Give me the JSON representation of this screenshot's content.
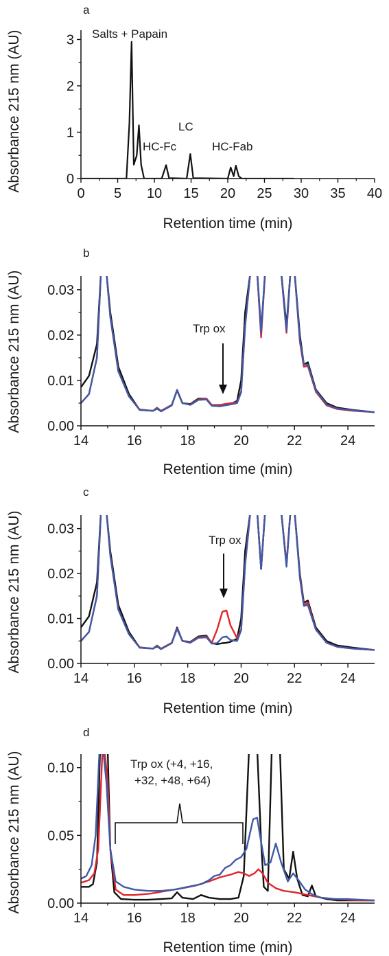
{
  "colors": {
    "black": "#111111",
    "red": "#e0262b",
    "blue": "#3e5aa8"
  },
  "chart_data": [
    {
      "panel": "a",
      "type": "line",
      "ylabel": "Absorbance 215 nm (AU)",
      "xlabel": "Retention time (min)",
      "xlim": [
        0,
        40
      ],
      "ylim": [
        0,
        3.2
      ],
      "xticks": [
        "0",
        "5",
        "10",
        "15",
        "20",
        "25",
        "30",
        "35",
        "40"
      ],
      "yticks": [
        "0",
        "1",
        "2",
        "3"
      ],
      "annotations": [
        "Salts + Papain",
        "HC-Fc",
        "LC",
        "HC-Fab"
      ],
      "series": [
        {
          "color": "black",
          "x": [
            0,
            6.2,
            6.6,
            6.9,
            7.2,
            7.6,
            7.9,
            8.2,
            8.6,
            11.0,
            11.6,
            12.0,
            14.4,
            14.9,
            15.3,
            20.0,
            20.4,
            20.8,
            21.1,
            21.5,
            21.9,
            29.0
          ],
          "y": [
            0,
            0.0,
            1.2,
            2.95,
            0.3,
            0.5,
            1.15,
            0.3,
            0.0,
            0.0,
            0.29,
            0.01,
            0.0,
            0.53,
            0.01,
            0.0,
            0.24,
            0.05,
            0.28,
            0.05,
            0.0,
            0.0
          ]
        }
      ]
    },
    {
      "panel": "b",
      "type": "line",
      "ylabel": "Absorbance 215 nm (AU)",
      "xlabel": "Retention time (min)",
      "xlim": [
        14,
        25
      ],
      "ylim": [
        0,
        0.033
      ],
      "xticks": [
        "14",
        "16",
        "18",
        "20",
        "22",
        "24"
      ],
      "yticks": [
        "0.00",
        "0.01",
        "0.02",
        "0.03"
      ],
      "annotations": [
        "Trp ox"
      ],
      "series": [
        {
          "color": "black",
          "x": [
            14.0,
            14.3,
            14.6,
            14.75,
            14.95,
            15.1,
            15.4,
            15.8,
            16.2,
            16.7,
            16.85,
            17.0,
            17.4,
            17.6,
            17.8,
            18.1,
            18.4,
            18.7,
            18.9,
            19.2,
            19.6,
            19.85,
            20.0,
            20.15,
            20.35,
            20.6,
            20.75,
            20.9,
            21.05,
            21.2,
            21.5,
            21.7,
            21.85,
            22.0,
            22.2,
            22.35,
            22.5,
            22.8,
            23.2,
            23.6,
            24.2,
            25.0
          ],
          "y": [
            0.0085,
            0.011,
            0.018,
            0.034,
            0.034,
            0.025,
            0.013,
            0.007,
            0.0035,
            0.0033,
            0.0038,
            0.0032,
            0.0045,
            0.0079,
            0.005,
            0.0048,
            0.006,
            0.006,
            0.0045,
            0.0043,
            0.0048,
            0.0055,
            0.01,
            0.025,
            0.034,
            0.034,
            0.021,
            0.034,
            0.034,
            0.034,
            0.034,
            0.022,
            0.034,
            0.034,
            0.02,
            0.0135,
            0.014,
            0.008,
            0.005,
            0.004,
            0.0035,
            0.003
          ]
        },
        {
          "color": "red",
          "x": [
            14.0,
            14.3,
            14.6,
            14.75,
            14.95,
            15.1,
            15.4,
            15.8,
            16.2,
            16.7,
            16.85,
            17.0,
            17.4,
            17.6,
            17.8,
            18.1,
            18.4,
            18.7,
            18.9,
            19.2,
            19.6,
            19.85,
            20.0,
            20.15,
            20.35,
            20.6,
            20.75,
            20.9,
            21.05,
            21.2,
            21.5,
            21.7,
            21.85,
            22.0,
            22.2,
            22.35,
            22.5,
            22.8,
            23.2,
            23.6,
            24.2,
            25.0
          ],
          "y": [
            0.005,
            0.007,
            0.015,
            0.034,
            0.034,
            0.024,
            0.012,
            0.0065,
            0.0036,
            0.0033,
            0.004,
            0.0033,
            0.0046,
            0.0078,
            0.005,
            0.0047,
            0.0058,
            0.006,
            0.0046,
            0.0046,
            0.005,
            0.0052,
            0.0075,
            0.022,
            0.034,
            0.034,
            0.0195,
            0.034,
            0.034,
            0.034,
            0.034,
            0.0205,
            0.034,
            0.034,
            0.0185,
            0.013,
            0.0132,
            0.0075,
            0.0045,
            0.0037,
            0.0033,
            0.003
          ]
        },
        {
          "color": "blue",
          "x": [
            14.0,
            14.3,
            14.6,
            14.75,
            14.95,
            15.1,
            15.4,
            15.8,
            16.2,
            16.7,
            16.85,
            17.0,
            17.4,
            17.6,
            17.8,
            18.1,
            18.4,
            18.7,
            18.9,
            19.2,
            19.6,
            19.85,
            20.0,
            20.15,
            20.35,
            20.6,
            20.75,
            20.9,
            21.05,
            21.2,
            21.5,
            21.7,
            21.85,
            22.0,
            22.2,
            22.35,
            22.5,
            22.8,
            23.2,
            23.6,
            24.2,
            25.0
          ],
          "y": [
            0.005,
            0.007,
            0.015,
            0.034,
            0.034,
            0.024,
            0.012,
            0.0065,
            0.0035,
            0.0033,
            0.0039,
            0.0032,
            0.0045,
            0.0078,
            0.005,
            0.0046,
            0.0057,
            0.0058,
            0.0044,
            0.0043,
            0.0047,
            0.005,
            0.0074,
            0.022,
            0.034,
            0.034,
            0.0205,
            0.034,
            0.034,
            0.034,
            0.034,
            0.021,
            0.034,
            0.034,
            0.019,
            0.0135,
            0.0135,
            0.0078,
            0.0047,
            0.0038,
            0.0034,
            0.003
          ]
        }
      ]
    },
    {
      "panel": "c",
      "type": "line",
      "ylabel": "Absorbance 215 nm (AU)",
      "xlabel": "Retention time (min)",
      "xlim": [
        14,
        25
      ],
      "ylim": [
        0,
        0.033
      ],
      "xticks": [
        "14",
        "16",
        "18",
        "20",
        "22",
        "24"
      ],
      "yticks": [
        "0.00",
        "0.01",
        "0.02",
        "0.03"
      ],
      "annotations": [
        "Trp ox"
      ],
      "series": [
        {
          "color": "black",
          "x": [
            14.0,
            14.3,
            14.6,
            14.75,
            14.95,
            15.1,
            15.4,
            15.8,
            16.2,
            16.7,
            16.85,
            17.0,
            17.4,
            17.6,
            17.8,
            18.1,
            18.4,
            18.7,
            18.9,
            19.1,
            19.3,
            19.45,
            19.6,
            19.85,
            20.0,
            20.15,
            20.35,
            20.6,
            20.75,
            20.9,
            21.05,
            21.2,
            21.5,
            21.7,
            21.85,
            22.0,
            22.2,
            22.35,
            22.5,
            22.8,
            23.2,
            23.6,
            24.2,
            25.0
          ],
          "y": [
            0.008,
            0.0105,
            0.018,
            0.034,
            0.034,
            0.025,
            0.013,
            0.007,
            0.0035,
            0.0033,
            0.0038,
            0.0032,
            0.0045,
            0.008,
            0.005,
            0.0048,
            0.006,
            0.0062,
            0.0045,
            0.0043,
            0.0045,
            0.0046,
            0.0048,
            0.0055,
            0.01,
            0.025,
            0.034,
            0.034,
            0.021,
            0.034,
            0.034,
            0.034,
            0.034,
            0.022,
            0.034,
            0.034,
            0.02,
            0.0135,
            0.014,
            0.008,
            0.005,
            0.004,
            0.0035,
            0.003
          ]
        },
        {
          "color": "red",
          "x": [
            14.0,
            14.3,
            14.6,
            14.75,
            14.95,
            15.1,
            15.4,
            15.8,
            16.2,
            16.7,
            16.85,
            17.0,
            17.4,
            17.6,
            17.8,
            18.1,
            18.4,
            18.7,
            18.9,
            19.1,
            19.3,
            19.45,
            19.6,
            19.85,
            20.0,
            20.15,
            20.35,
            20.6,
            20.75,
            20.9,
            21.05,
            21.2,
            21.5,
            21.7,
            21.85,
            22.0,
            22.2,
            22.35,
            22.5,
            22.8,
            23.2,
            23.6,
            24.2,
            25.0
          ],
          "y": [
            0.005,
            0.007,
            0.015,
            0.034,
            0.034,
            0.024,
            0.012,
            0.0065,
            0.0036,
            0.0033,
            0.004,
            0.0033,
            0.0046,
            0.0078,
            0.005,
            0.0047,
            0.0058,
            0.006,
            0.0046,
            0.0075,
            0.0115,
            0.0118,
            0.0085,
            0.0056,
            0.0075,
            0.022,
            0.034,
            0.034,
            0.021,
            0.034,
            0.034,
            0.034,
            0.034,
            0.022,
            0.034,
            0.034,
            0.0195,
            0.013,
            0.0135,
            0.0076,
            0.0046,
            0.0037,
            0.0033,
            0.003
          ]
        },
        {
          "color": "blue",
          "x": [
            14.0,
            14.3,
            14.6,
            14.75,
            14.95,
            15.1,
            15.4,
            15.8,
            16.2,
            16.7,
            16.85,
            17.0,
            17.4,
            17.6,
            17.8,
            18.1,
            18.4,
            18.7,
            18.9,
            19.1,
            19.3,
            19.45,
            19.6,
            19.85,
            20.0,
            20.15,
            20.35,
            20.6,
            20.75,
            20.9,
            21.05,
            21.2,
            21.5,
            21.7,
            21.85,
            22.0,
            22.2,
            22.35,
            22.5,
            22.8,
            23.2,
            23.6,
            24.2,
            25.0
          ],
          "y": [
            0.005,
            0.007,
            0.015,
            0.034,
            0.034,
            0.024,
            0.012,
            0.0065,
            0.0035,
            0.0033,
            0.0039,
            0.0032,
            0.0045,
            0.0077,
            0.005,
            0.0046,
            0.0057,
            0.0058,
            0.0044,
            0.0045,
            0.0058,
            0.006,
            0.0052,
            0.005,
            0.0074,
            0.022,
            0.034,
            0.034,
            0.021,
            0.034,
            0.034,
            0.034,
            0.034,
            0.0215,
            0.034,
            0.034,
            0.019,
            0.0128,
            0.013,
            0.0075,
            0.0046,
            0.0037,
            0.0033,
            0.003
          ]
        }
      ]
    },
    {
      "panel": "d",
      "type": "line",
      "ylabel": "Absorbance 215 nm (AU)",
      "xlabel": "Retention time (min)",
      "xlim": [
        14,
        25
      ],
      "ylim": [
        0,
        0.11
      ],
      "xticks": [
        "14",
        "16",
        "18",
        "20",
        "22",
        "24"
      ],
      "yticks": [
        "0.00",
        "0.05",
        "0.10"
      ],
      "annotations": [
        "Trp ox (+4, +16,",
        "+32, +48, +64)"
      ],
      "series": [
        {
          "color": "black",
          "x": [
            14.0,
            14.3,
            14.45,
            14.6,
            14.72,
            14.85,
            15.0,
            15.1,
            15.25,
            15.5,
            16.0,
            16.5,
            17.0,
            17.4,
            17.6,
            17.8,
            18.2,
            18.5,
            18.8,
            19.2,
            19.6,
            19.9,
            20.1,
            20.3,
            20.45,
            20.6,
            20.75,
            20.85,
            21.0,
            21.15,
            21.3,
            21.45,
            21.6,
            21.8,
            21.95,
            22.1,
            22.3,
            22.5,
            22.65,
            22.8,
            23.2,
            23.6,
            24.2,
            25.0
          ],
          "y": [
            0.012,
            0.012,
            0.014,
            0.03,
            0.115,
            0.115,
            0.115,
            0.04,
            0.008,
            0.003,
            0.0025,
            0.0025,
            0.003,
            0.0035,
            0.008,
            0.004,
            0.003,
            0.006,
            0.004,
            0.003,
            0.003,
            0.004,
            0.02,
            0.115,
            0.115,
            0.115,
            0.045,
            0.012,
            0.009,
            0.115,
            0.115,
            0.115,
            0.025,
            0.018,
            0.038,
            0.018,
            0.006,
            0.005,
            0.013,
            0.005,
            0.003,
            0.002,
            0.002,
            0.002
          ]
        },
        {
          "color": "red",
          "x": [
            14.0,
            14.3,
            14.5,
            14.65,
            14.8,
            14.9,
            15.0,
            15.1,
            15.3,
            15.6,
            16.0,
            16.6,
            17.2,
            17.8,
            18.3,
            18.8,
            19.2,
            19.6,
            19.9,
            20.1,
            20.3,
            20.5,
            20.65,
            20.8,
            21.0,
            21.3,
            21.6,
            22.0,
            22.5,
            23.0,
            23.5,
            24.0,
            24.5,
            25.0
          ],
          "y": [
            0.015,
            0.017,
            0.022,
            0.04,
            0.11,
            0.11,
            0.09,
            0.04,
            0.01,
            0.006,
            0.006,
            0.007,
            0.009,
            0.011,
            0.013,
            0.016,
            0.019,
            0.021,
            0.023,
            0.022,
            0.02,
            0.022,
            0.025,
            0.022,
            0.015,
            0.011,
            0.009,
            0.008,
            0.006,
            0.004,
            0.003,
            0.0025,
            0.002,
            0.002
          ]
        },
        {
          "color": "blue",
          "x": [
            14.0,
            14.2,
            14.4,
            14.55,
            14.7,
            14.82,
            14.95,
            15.1,
            15.3,
            15.6,
            16.0,
            16.5,
            17.0,
            17.5,
            18.0,
            18.5,
            18.8,
            19.0,
            19.2,
            19.4,
            19.6,
            19.8,
            20.0,
            20.2,
            20.45,
            20.6,
            20.75,
            20.9,
            21.1,
            21.3,
            21.5,
            21.75,
            21.95,
            22.15,
            22.4,
            22.7,
            23.0,
            23.5,
            24.0,
            25.0
          ],
          "y": [
            0.018,
            0.02,
            0.028,
            0.05,
            0.115,
            0.115,
            0.09,
            0.04,
            0.016,
            0.012,
            0.01,
            0.009,
            0.009,
            0.01,
            0.012,
            0.014,
            0.017,
            0.02,
            0.021,
            0.026,
            0.028,
            0.032,
            0.034,
            0.04,
            0.062,
            0.063,
            0.045,
            0.028,
            0.03,
            0.044,
            0.03,
            0.016,
            0.022,
            0.017,
            0.01,
            0.006,
            0.004,
            0.003,
            0.003,
            0.002
          ]
        }
      ]
    }
  ]
}
